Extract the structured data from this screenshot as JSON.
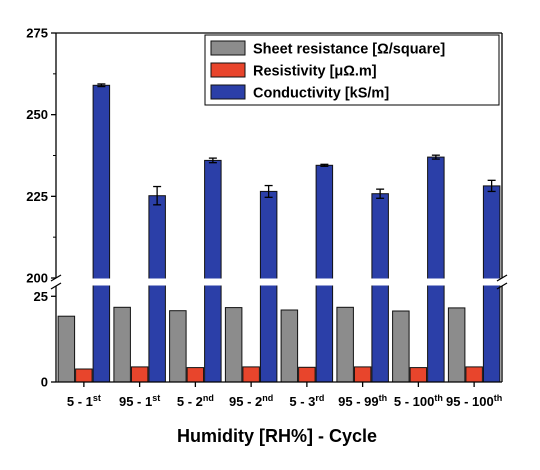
{
  "chart_data": {
    "type": "bar",
    "title": "",
    "xlabel": "Humidity [RH%] - Cycle",
    "ylabel": "",
    "categories": [
      {
        "base": "5 - 1",
        "sup": "st"
      },
      {
        "base": "95 - 1",
        "sup": "st"
      },
      {
        "base": "5 - 2",
        "sup": "nd"
      },
      {
        "base": "95 - 2",
        "sup": "nd"
      },
      {
        "base": "5 - 3",
        "sup": "rd"
      },
      {
        "base": "95 - 99",
        "sup": "th"
      },
      {
        "base": "5 - 100",
        "sup": "th"
      },
      {
        "base": "95 - 100",
        "sup": "th"
      }
    ],
    "series": [
      {
        "name": "Sheet resistance [Ω/square]",
        "color": "#8c8c8c",
        "values": [
          19.2,
          21.8,
          20.8,
          21.7,
          21.0,
          21.8,
          20.7,
          21.6
        ]
      },
      {
        "name": "Resistivity [μΩ.m]",
        "color": "#e8452c",
        "values": [
          3.8,
          4.4,
          4.2,
          4.4,
          4.3,
          4.4,
          4.2,
          4.4
        ]
      },
      {
        "name": "Conductivity [kS/m]",
        "color": "#2b3fa8",
        "values": [
          259,
          225.2,
          236,
          226.5,
          234.5,
          225.8,
          237,
          228.2
        ],
        "errors": [
          0.4,
          2.8,
          0.7,
          1.8,
          0.3,
          1.4,
          0.6,
          1.7
        ]
      }
    ],
    "y_axis": {
      "broken": true,
      "lower_range": [
        0,
        28
      ],
      "upper_range": [
        200,
        275
      ],
      "lower_ticks": [
        0,
        25
      ],
      "upper_ticks": [
        200,
        225,
        250,
        275
      ]
    },
    "legend_position": "top-right",
    "grid": false
  }
}
